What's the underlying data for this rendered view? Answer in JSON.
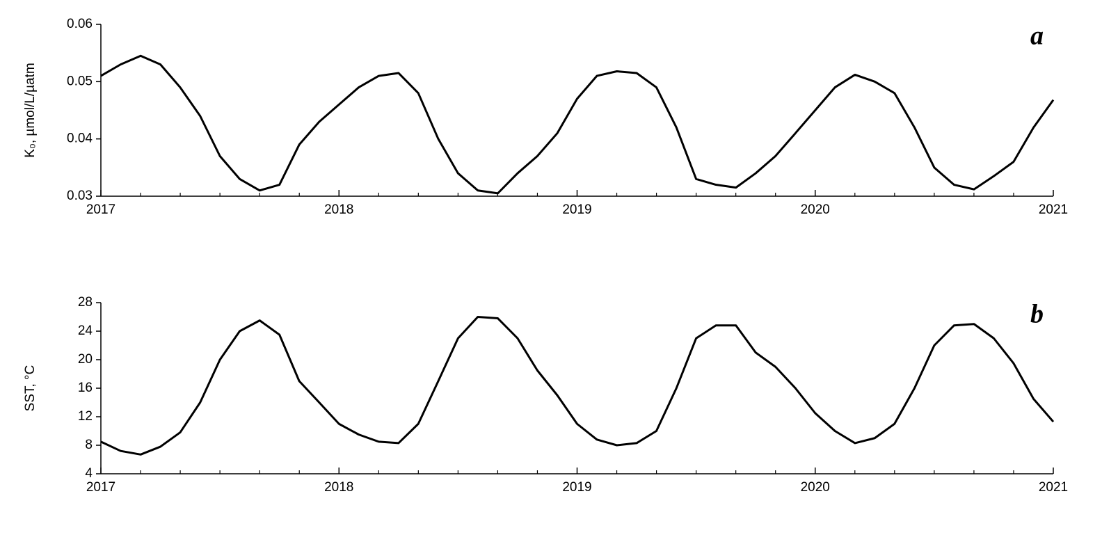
{
  "chart_data": [
    {
      "type": "line",
      "panel_label": "a",
      "ylabel": "K₀, µmol/L/µatm",
      "x": [
        2017,
        2017.083,
        2017.167,
        2017.25,
        2017.333,
        2017.417,
        2017.5,
        2017.583,
        2017.667,
        2017.75,
        2017.833,
        2017.917,
        2018,
        2018.083,
        2018.167,
        2018.25,
        2018.333,
        2018.417,
        2018.5,
        2018.583,
        2018.667,
        2018.75,
        2018.833,
        2018.917,
        2019,
        2019.083,
        2019.167,
        2019.25,
        2019.333,
        2019.417,
        2019.5,
        2019.583,
        2019.667,
        2019.75,
        2019.833,
        2019.917,
        2020,
        2020.083,
        2020.167,
        2020.25,
        2020.333,
        2020.417,
        2020.5,
        2020.583,
        2020.667,
        2020.75,
        2020.833,
        2020.917,
        2021
      ],
      "series": [
        {
          "color": "#000000",
          "values": [
            0.051,
            0.053,
            0.0545,
            0.053,
            0.049,
            0.044,
            0.037,
            0.033,
            0.031,
            0.032,
            0.039,
            0.043,
            0.046,
            0.049,
            0.051,
            0.0515,
            0.048,
            0.04,
            0.034,
            0.031,
            0.0305,
            0.034,
            0.037,
            0.041,
            0.047,
            0.051,
            0.0518,
            0.0515,
            0.049,
            0.042,
            0.033,
            0.032,
            0.0315,
            0.034,
            0.037,
            0.041,
            0.045,
            0.049,
            0.0512,
            0.05,
            0.048,
            0.042,
            0.035,
            0.032,
            0.0312,
            0.0335,
            0.036,
            0.042,
            0.0468
          ]
        }
      ],
      "xlim": [
        2017,
        2021
      ],
      "xticks": [
        2017,
        2018,
        2019,
        2020,
        2021
      ],
      "xminor_per_major": 5,
      "ylim": [
        0.03,
        0.06
      ],
      "yticks": [
        0.03,
        0.04,
        0.05,
        0.06
      ]
    },
    {
      "type": "line",
      "panel_label": "b",
      "ylabel": "SST, °C",
      "x": [
        2017,
        2017.083,
        2017.167,
        2017.25,
        2017.333,
        2017.417,
        2017.5,
        2017.583,
        2017.667,
        2017.75,
        2017.833,
        2017.917,
        2018,
        2018.083,
        2018.167,
        2018.25,
        2018.333,
        2018.417,
        2018.5,
        2018.583,
        2018.667,
        2018.75,
        2018.833,
        2018.917,
        2019,
        2019.083,
        2019.167,
        2019.25,
        2019.333,
        2019.417,
        2019.5,
        2019.583,
        2019.667,
        2019.75,
        2019.833,
        2019.917,
        2020,
        2020.083,
        2020.167,
        2020.25,
        2020.333,
        2020.417,
        2020.5,
        2020.583,
        2020.667,
        2020.75,
        2020.833,
        2020.917,
        2021
      ],
      "series": [
        {
          "color": "#000000",
          "values": [
            8.5,
            7.2,
            6.7,
            7.8,
            9.8,
            14,
            20,
            24,
            25.5,
            23.5,
            17,
            14,
            11,
            9.5,
            8.5,
            8.3,
            11,
            17,
            23,
            26,
            25.8,
            23,
            18.5,
            15,
            11,
            8.8,
            8,
            8.3,
            10,
            16,
            23,
            24.8,
            24.8,
            21,
            19,
            16,
            12.5,
            10,
            8.3,
            9,
            11,
            16,
            22,
            24.8,
            25,
            23,
            19.5,
            14.5,
            11.3
          ]
        }
      ],
      "xlim": [
        2017,
        2021
      ],
      "xticks": [
        2017,
        2018,
        2019,
        2020,
        2021
      ],
      "xminor_per_major": 5,
      "ylim": [
        4,
        28
      ],
      "yticks": [
        4,
        8,
        12,
        16,
        20,
        24,
        28
      ]
    }
  ]
}
